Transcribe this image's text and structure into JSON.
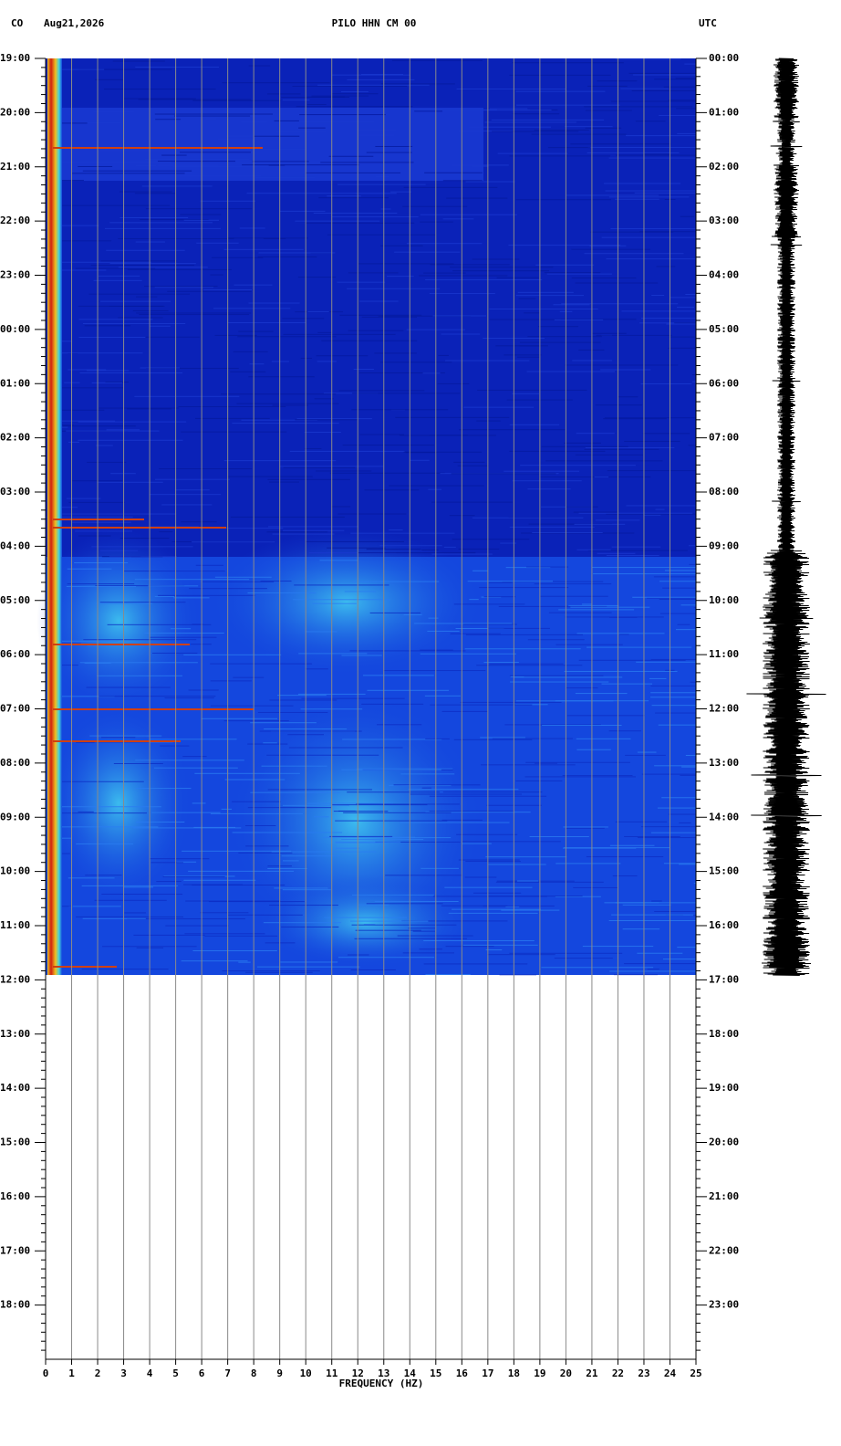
{
  "chart_data": {
    "type": "spectrogram",
    "network": "CO",
    "date": "Aug21,2026",
    "title": "PILO HHN CM 00",
    "timezone": "UTC",
    "x_label": "FREQUENCY (HZ)",
    "xlim": [
      0,
      25
    ],
    "xticks": [
      0,
      1,
      2,
      3,
      4,
      5,
      6,
      7,
      8,
      9,
      10,
      11,
      12,
      13,
      14,
      15,
      16,
      17,
      18,
      19,
      20,
      21,
      22,
      23,
      24,
      25
    ],
    "ylim": [
      0,
      24
    ],
    "yticks": [
      {
        "value": 0,
        "label": "19:00"
      },
      {
        "value": 1,
        "label": "20:00"
      },
      {
        "value": 2,
        "label": "21:00"
      },
      {
        "value": 3,
        "label": "22:00"
      },
      {
        "value": 4,
        "label": "23:00"
      },
      {
        "value": 5,
        "label": "00:00"
      },
      {
        "value": 6,
        "label": "01:00"
      },
      {
        "value": 7,
        "label": "02:00"
      },
      {
        "value": 8,
        "label": "03:00"
      },
      {
        "value": 9,
        "label": "04:00"
      },
      {
        "value": 10,
        "label": "05:00"
      },
      {
        "value": 11,
        "label": "06:00"
      },
      {
        "value": 12,
        "label": "07:00"
      },
      {
        "value": 13,
        "label": "08:00"
      },
      {
        "value": 14,
        "label": "09:00"
      },
      {
        "value": 15,
        "label": "10:00"
      },
      {
        "value": 16,
        "label": "11:00"
      },
      {
        "value": 17,
        "label": "12:00"
      },
      {
        "value": 18,
        "label": "13:00"
      },
      {
        "value": 19,
        "label": "14:00"
      },
      {
        "value": 20,
        "label": "15:00"
      },
      {
        "value": 21,
        "label": "16:00"
      },
      {
        "value": 22,
        "label": "17:00"
      },
      {
        "value": 23,
        "label": "18:00"
      }
    ],
    "y2ticks": [
      {
        "value": 0,
        "label": "00:00"
      },
      {
        "value": 1,
        "label": "01:00"
      },
      {
        "value": 2,
        "label": "02:00"
      },
      {
        "value": 3,
        "label": "03:00"
      },
      {
        "value": 4,
        "label": "04:00"
      },
      {
        "value": 5,
        "label": "05:00"
      },
      {
        "value": 6,
        "label": "06:00"
      },
      {
        "value": 7,
        "label": "07:00"
      },
      {
        "value": 8,
        "label": "08:00"
      },
      {
        "value": 9,
        "label": "09:00"
      },
      {
        "value": 10,
        "label": "10:00"
      },
      {
        "value": 11,
        "label": "11:00"
      },
      {
        "value": 12,
        "label": "12:00"
      },
      {
        "value": 13,
        "label": "13:00"
      },
      {
        "value": 14,
        "label": "14:00"
      },
      {
        "value": 15,
        "label": "15:00"
      },
      {
        "value": 16,
        "label": "16:00"
      },
      {
        "value": 17,
        "label": "17:00"
      },
      {
        "value": 18,
        "label": "18:00"
      },
      {
        "value": 19,
        "label": "19:00"
      },
      {
        "value": 20,
        "label": "20:00"
      },
      {
        "value": 21,
        "label": "21:00"
      },
      {
        "value": 22,
        "label": "22:00"
      },
      {
        "value": 23,
        "label": "23:00"
      }
    ],
    "grid": true
  }
}
